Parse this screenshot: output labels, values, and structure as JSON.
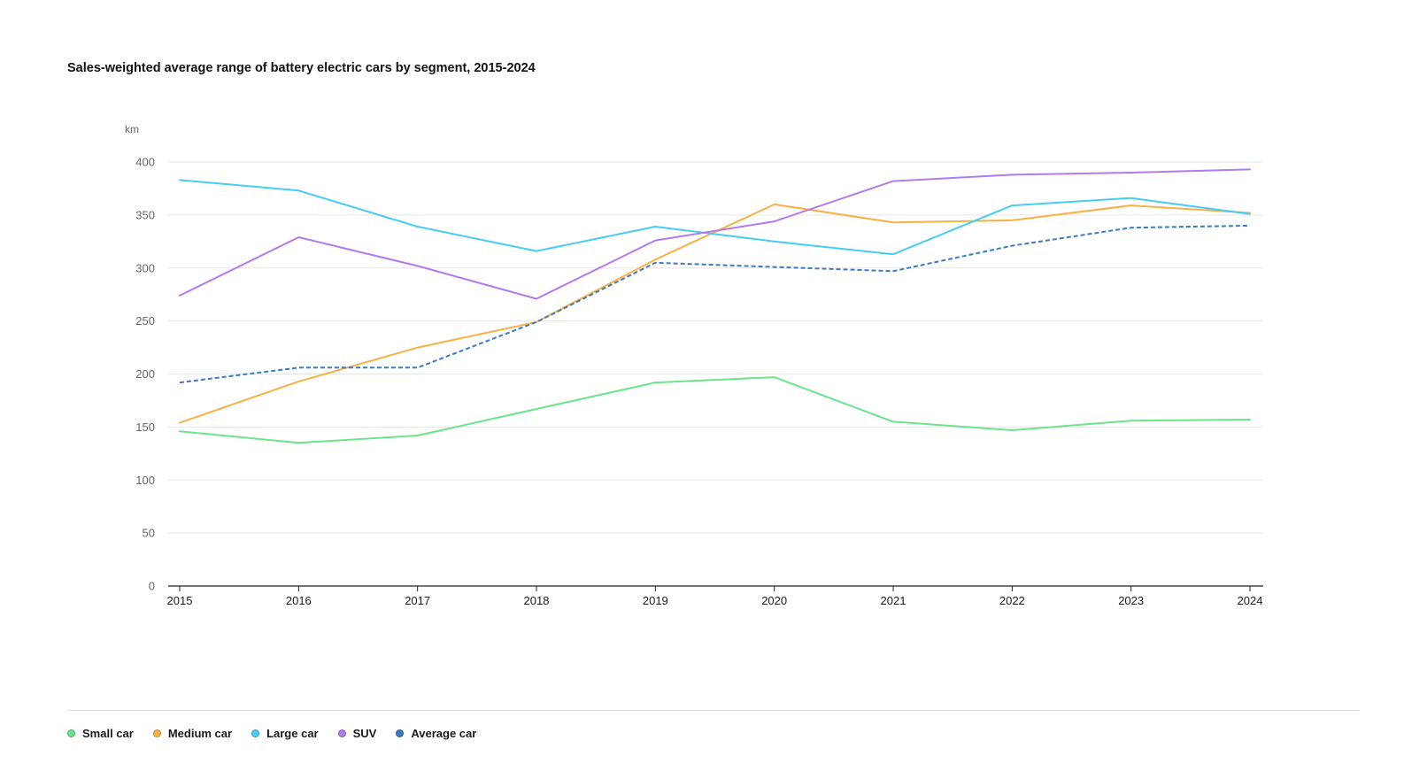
{
  "title": "Sales-weighted average range of battery electric cars by segment, 2015-2024",
  "chart_data": {
    "type": "line",
    "title": "Sales-weighted average range of battery electric cars by segment, 2015-2024",
    "unit_label": "km",
    "xlabel": "",
    "ylabel": "km",
    "x": [
      "2015",
      "2016",
      "2017",
      "2018",
      "2019",
      "2020",
      "2021",
      "2022",
      "2023",
      "2024"
    ],
    "ylim": [
      0,
      400
    ],
    "yticks": [
      "0",
      "50",
      "100",
      "150",
      "200",
      "250",
      "300",
      "350",
      "400"
    ],
    "grid": true,
    "legend_position": "bottom-left",
    "series": [
      {
        "name": "Small car",
        "color": "#6be58c",
        "dashed": false,
        "values": [
          146,
          135,
          142,
          167,
          192,
          197,
          155,
          147,
          156,
          157
        ]
      },
      {
        "name": "Medium car",
        "color": "#f9b143",
        "dashed": false,
        "values": [
          154,
          193,
          225,
          249,
          308,
          360,
          343,
          345,
          359,
          352
        ]
      },
      {
        "name": "Large car",
        "color": "#45cdf5",
        "dashed": false,
        "values": [
          383,
          373,
          339,
          316,
          339,
          325,
          313,
          359,
          366,
          351
        ]
      },
      {
        "name": "SUV",
        "color": "#b07bf0",
        "dashed": false,
        "values": [
          274,
          329,
          302,
          271,
          326,
          344,
          382,
          388,
          390,
          393
        ]
      },
      {
        "name": "Average car",
        "color": "#3b79c9",
        "dashed": true,
        "values": [
          192,
          206,
          206,
          249,
          305,
          301,
          297,
          321,
          338,
          340
        ]
      }
    ]
  }
}
